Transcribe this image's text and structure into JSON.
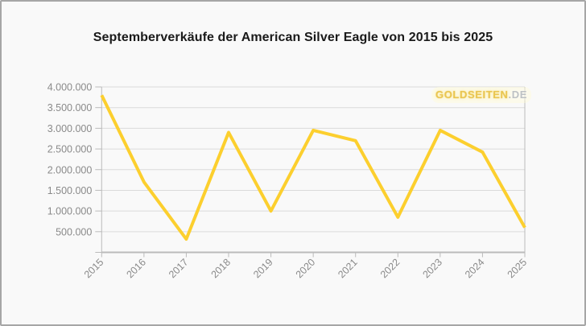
{
  "chart_data": {
    "type": "line",
    "title": "Septemberverkäufe der American Silver Eagle von 2015 bis 2025",
    "categories": [
      "2015",
      "2016",
      "2017",
      "2018",
      "2019",
      "2020",
      "2021",
      "2022",
      "2023",
      "2024",
      "2025"
    ],
    "values": [
      3800000,
      1700000,
      320000,
      2900000,
      1000000,
      2950000,
      2700000,
      850000,
      2950000,
      2425000,
      600000
    ],
    "xlabel": "",
    "ylabel": "",
    "ylim": [
      0,
      4000000
    ],
    "grid": true,
    "legend_position": "none",
    "yticks": [
      {
        "value": 500000,
        "label": "500.000"
      },
      {
        "value": 1000000,
        "label": "1.000.000"
      },
      {
        "value": 1500000,
        "label": "1.500.000"
      },
      {
        "value": 2000000,
        "label": "2.000.000"
      },
      {
        "value": 2500000,
        "label": "2.500.000"
      },
      {
        "value": 3000000,
        "label": "3.000.000"
      },
      {
        "value": 3500000,
        "label": "3.500.000"
      },
      {
        "value": 4000000,
        "label": "4.000.000"
      }
    ],
    "watermark": {
      "brand": "GOLDSEITEN",
      "tld": ".DE"
    }
  },
  "style": {
    "line_color": "#FCCF2E",
    "grid_color": "#DADADA",
    "axis_color": "#BBBBBB",
    "tick_label_color": "#8A8A8A",
    "title_color": "#1A1A1A",
    "background": "#F9F9F9",
    "border_color": "#A6A6A6",
    "watermark_gold": "#E9C244",
    "watermark_silver": "#B2B6BC"
  }
}
